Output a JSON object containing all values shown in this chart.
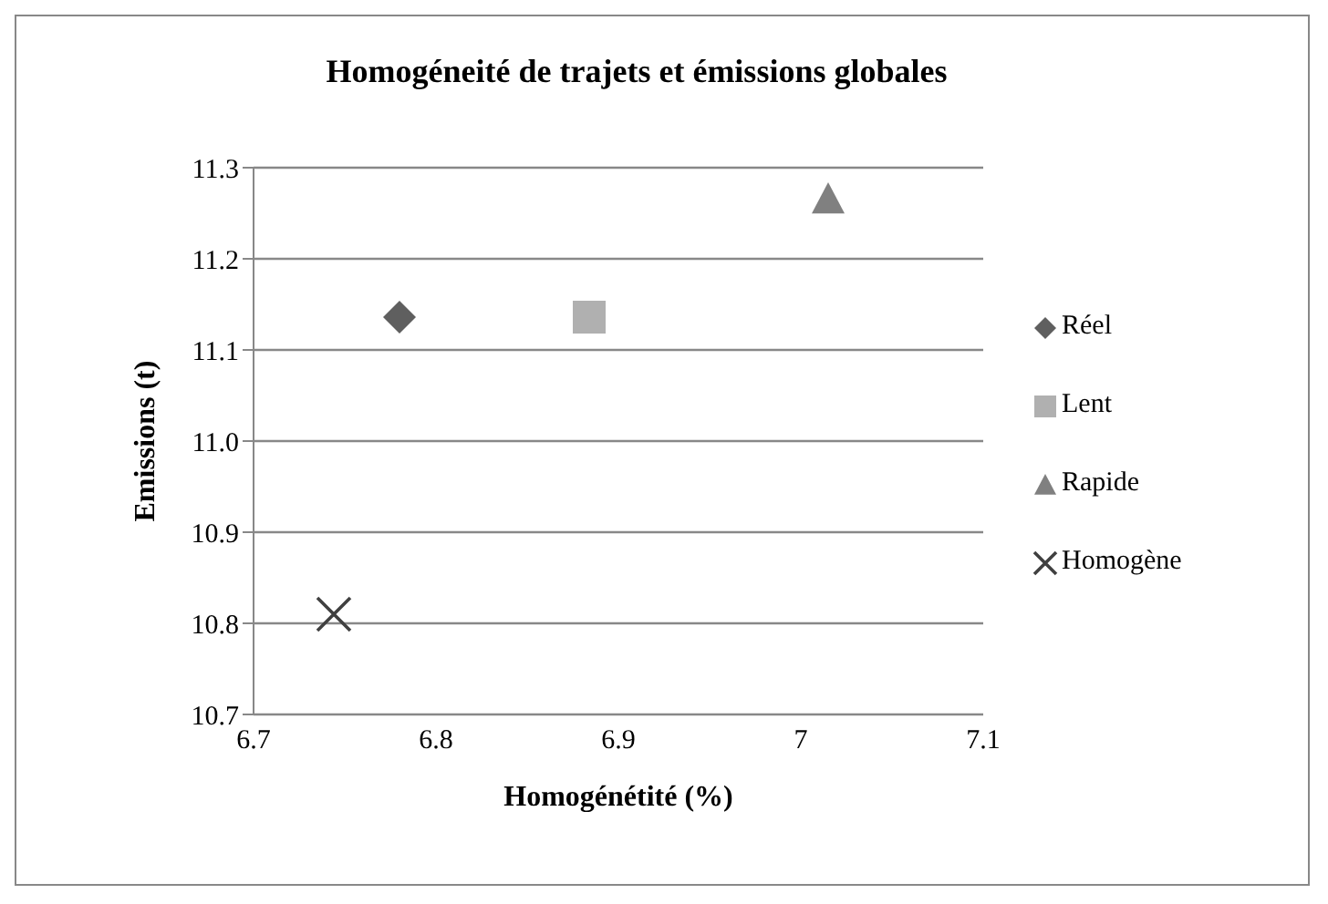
{
  "chart_data": {
    "type": "scatter",
    "title": "Homogéneité de trajets et émissions globales",
    "xlabel": "Homogénétité (%)",
    "ylabel": "Emissions (t)",
    "series": [
      {
        "name": "Réel",
        "color": "#5f5f5f",
        "marker": "diamond",
        "x": [
          6.78
        ],
        "values": [
          11.136
        ]
      },
      {
        "name": "Lent",
        "color": "#b0b0b0",
        "marker": "square",
        "x": [
          6.884
        ],
        "values": [
          11.136
        ]
      },
      {
        "name": "Rapide",
        "color": "#808080",
        "marker": "triangle",
        "x": [
          7.015
        ],
        "values": [
          11.266
        ]
      },
      {
        "name": "Homogène",
        "color": "#404040",
        "marker": "cross",
        "x": [
          6.744
        ],
        "values": [
          10.81
        ]
      }
    ],
    "xlim": [
      6.7,
      7.1
    ],
    "xticks": [
      6.7,
      6.8,
      6.9,
      7,
      7.1
    ],
    "ylim": [
      10.7,
      11.3
    ],
    "yticks": [
      10.7,
      10.8,
      10.9,
      {
        "value": 11,
        "label": "11.0"
      },
      11.1,
      11.2,
      11.3
    ],
    "grid": "y",
    "legend": "right"
  }
}
